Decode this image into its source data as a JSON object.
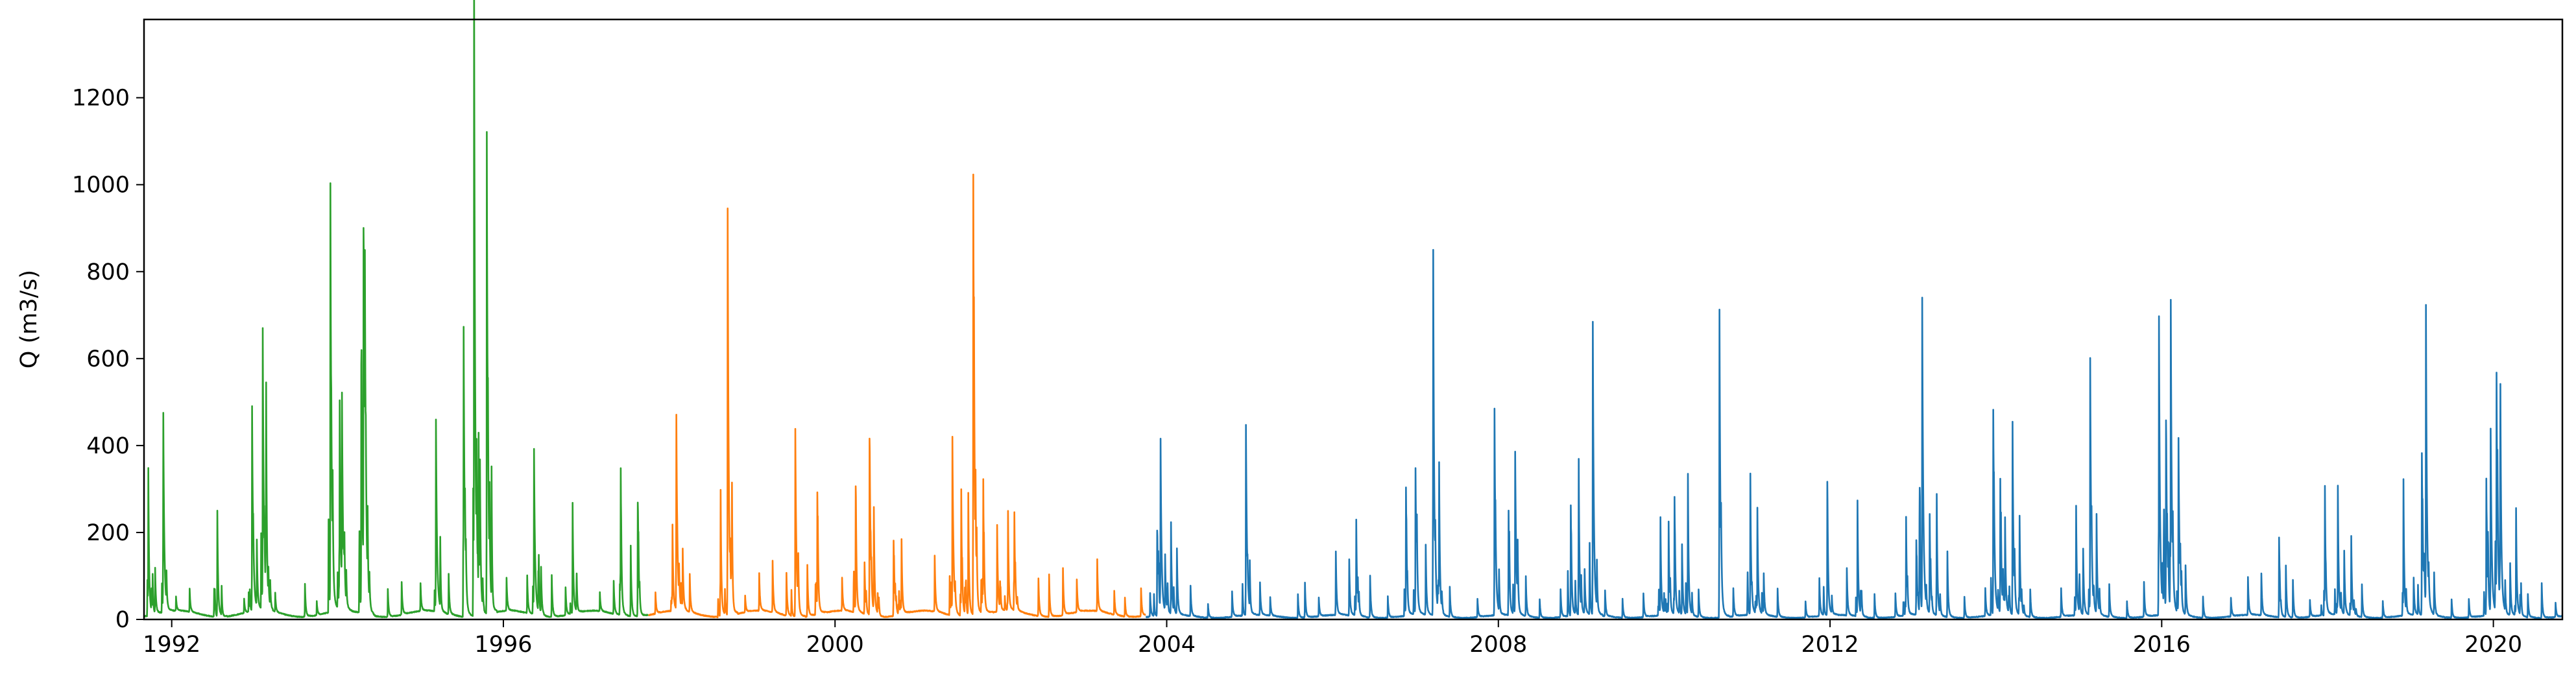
{
  "chart_data": {
    "type": "line",
    "title": "",
    "xlabel": "",
    "ylabel": "Q (m3/s)",
    "xlim": [
      "1991-09-01",
      "2020-10-31"
    ],
    "ylim": [
      0,
      1380
    ],
    "x_ticks": [
      "1992",
      "1996",
      "2000",
      "2004",
      "2008",
      "2012",
      "2016",
      "2020"
    ],
    "y_ticks": [
      0,
      200,
      400,
      600,
      800,
      1000,
      1200
    ],
    "grid": false,
    "legend": "none",
    "series": [
      {
        "color": "#2ca02c",
        "range": [
          "1991-09-01",
          "1997-09-30"
        ],
        "base": 12,
        "peaks": [
          [
            "1991-09-20",
            300
          ],
          [
            "1991-10-20",
            95
          ],
          [
            "1991-11-25",
            365
          ],
          [
            "1992-01-20",
            30
          ],
          [
            "1992-03-20",
            50
          ],
          [
            "1992-07-20",
            225
          ],
          [
            "1992-11-15",
            30
          ],
          [
            "1992-12-20",
            435
          ],
          [
            "1993-01-10",
            140
          ],
          [
            "1993-02-05",
            590
          ],
          [
            "1993-02-20",
            300
          ],
          [
            "1993-04-01",
            40
          ],
          [
            "1993-08-10",
            70
          ],
          [
            "1993-10-01",
            30
          ],
          [
            "1993-11-30",
            905
          ],
          [
            "1994-01-10",
            400
          ],
          [
            "1994-01-20",
            410
          ],
          [
            "1994-04-15",
            480
          ],
          [
            "1994-04-25",
            710
          ],
          [
            "1994-05-01",
            490
          ],
          [
            "1994-08-10",
            60
          ],
          [
            "1994-10-10",
            70
          ],
          [
            "1995-01-01",
            60
          ],
          [
            "1995-03-10",
            405
          ],
          [
            "1995-05-05",
            85
          ],
          [
            "1995-07-10",
            560
          ],
          [
            "1995-08-25",
            1320
          ],
          [
            "1995-09-20",
            280
          ],
          [
            "1995-10-20",
            1025
          ],
          [
            "1996-01-15",
            70
          ],
          [
            "1996-04-15",
            80
          ],
          [
            "1996-05-15",
            345
          ],
          [
            "1996-06-15",
            100
          ],
          [
            "1996-08-01",
            90
          ],
          [
            "1996-10-01",
            60
          ],
          [
            "1996-11-01",
            235
          ],
          [
            "1997-03-01",
            40
          ],
          [
            "1997-05-01",
            70
          ],
          [
            "1997-06-01",
            285
          ],
          [
            "1997-07-15",
            150
          ],
          [
            "1997-08-15",
            230
          ]
        ]
      },
      {
        "color": "#ff7f0e",
        "range": [
          "1997-10-01",
          "2003-09-30"
        ],
        "base": 12,
        "peaks": [
          [
            "1997-11-01",
            45
          ],
          [
            "1998-01-15",
            175
          ],
          [
            "1998-02-01",
            370
          ],
          [
            "1998-03-01",
            125
          ],
          [
            "1998-04-01",
            80
          ],
          [
            "1998-08-15",
            250
          ],
          [
            "1998-09-15",
            865
          ],
          [
            "1998-12-01",
            35
          ],
          [
            "1999-02-01",
            80
          ],
          [
            "1999-04-01",
            110
          ],
          [
            "1999-06-01",
            90
          ],
          [
            "1999-07-10",
            400
          ],
          [
            "1999-09-01",
            110
          ],
          [
            "1999-10-15",
            250
          ],
          [
            "2000-02-01",
            70
          ],
          [
            "2000-04-01",
            250
          ],
          [
            "2000-05-10",
            110
          ],
          [
            "2000-06-01",
            360
          ],
          [
            "2000-06-20",
            220
          ],
          [
            "2000-09-15",
            160
          ],
          [
            "2000-10-20",
            155
          ],
          [
            "2001-03-15",
            120
          ],
          [
            "2001-06-01",
            375
          ],
          [
            "2001-07-10",
            260
          ],
          [
            "2001-08-10",
            260
          ],
          [
            "2001-09-01",
            900
          ],
          [
            "2001-10-15",
            270
          ],
          [
            "2001-12-15",
            185
          ],
          [
            "2002-02-01",
            180
          ],
          [
            "2002-03-01",
            185
          ],
          [
            "2002-06-15",
            80
          ],
          [
            "2002-08-01",
            90
          ],
          [
            "2002-10-01",
            100
          ],
          [
            "2002-12-01",
            70
          ],
          [
            "2003-03-01",
            110
          ],
          [
            "2003-05-15",
            50
          ],
          [
            "2003-07-01",
            40
          ],
          [
            "2003-09-10",
            60
          ]
        ]
      },
      {
        "color": "#1f77b4",
        "range": [
          "2003-10-01",
          "2020-10-31"
        ],
        "base": 6,
        "peaks": [
          [
            "2003-10-20",
            50
          ],
          [
            "2003-11-20",
            170
          ],
          [
            "2003-12-05",
            325
          ],
          [
            "2003-12-25",
            120
          ],
          [
            "2004-01-20",
            195
          ],
          [
            "2004-02-15",
            140
          ],
          [
            "2004-04-15",
            65
          ],
          [
            "2004-07-01",
            30
          ],
          [
            "2004-10-15",
            55
          ],
          [
            "2004-12-15",
            405
          ],
          [
            "2005-02-15",
            70
          ],
          [
            "2005-04-01",
            40
          ],
          [
            "2005-08-01",
            50
          ],
          [
            "2005-09-01",
            75
          ],
          [
            "2005-11-01",
            40
          ],
          [
            "2006-01-15",
            135
          ],
          [
            "2006-03-15",
            120
          ],
          [
            "2006-04-15",
            200
          ],
          [
            "2006-06-15",
            90
          ],
          [
            "2006-09-01",
            45
          ],
          [
            "2006-11-20",
            270
          ],
          [
            "2007-01-01",
            310
          ],
          [
            "2007-02-15",
            150
          ],
          [
            "2007-03-20",
            675
          ],
          [
            "2007-04-15",
            300
          ],
          [
            "2007-06-01",
            65
          ],
          [
            "2007-10-01",
            40
          ],
          [
            "2007-12-15",
            365
          ],
          [
            "2008-02-15",
            210
          ],
          [
            "2008-03-15",
            345
          ],
          [
            "2008-05-01",
            85
          ],
          [
            "2008-07-01",
            40
          ],
          [
            "2008-10-01",
            60
          ],
          [
            "2008-11-15",
            235
          ],
          [
            "2008-12-20",
            280
          ],
          [
            "2009-01-15",
            95
          ],
          [
            "2009-02-20",
            570
          ],
          [
            "2009-04-15",
            55
          ],
          [
            "2009-07-01",
            40
          ],
          [
            "2009-10-01",
            50
          ],
          [
            "2009-12-15",
            205
          ],
          [
            "2010-01-20",
            195
          ],
          [
            "2010-02-15",
            240
          ],
          [
            "2010-03-20",
            150
          ],
          [
            "2010-04-15",
            270
          ],
          [
            "2010-06-01",
            60
          ],
          [
            "2010-09-01",
            525
          ],
          [
            "2010-11-01",
            60
          ],
          [
            "2011-01-15",
            300
          ],
          [
            "2011-02-15",
            220
          ],
          [
            "2011-03-15",
            85
          ],
          [
            "2011-05-15",
            60
          ],
          [
            "2011-09-15",
            35
          ],
          [
            "2011-11-15",
            80
          ],
          [
            "2011-12-20",
            275
          ],
          [
            "2012-03-15",
            100
          ],
          [
            "2012-05-01",
            245
          ],
          [
            "2012-07-15",
            50
          ],
          [
            "2012-10-15",
            50
          ],
          [
            "2012-12-01",
            205
          ],
          [
            "2013-01-15",
            160
          ],
          [
            "2013-02-10",
            670
          ],
          [
            "2013-03-15",
            210
          ],
          [
            "2013-04-15",
            225
          ],
          [
            "2013-06-01",
            140
          ],
          [
            "2013-08-15",
            45
          ],
          [
            "2013-11-15",
            60
          ],
          [
            "2013-12-20",
            435
          ],
          [
            "2014-01-20",
            285
          ],
          [
            "2014-02-10",
            195
          ],
          [
            "2014-03-15",
            325
          ],
          [
            "2014-04-15",
            200
          ],
          [
            "2014-06-01",
            60
          ],
          [
            "2014-10-15",
            60
          ],
          [
            "2014-12-20",
            230
          ],
          [
            "2015-01-20",
            140
          ],
          [
            "2015-02-20",
            435
          ],
          [
            "2015-03-20",
            210
          ],
          [
            "2015-05-15",
            70
          ],
          [
            "2015-08-01",
            35
          ],
          [
            "2015-10-15",
            75
          ],
          [
            "2015-12-20",
            580
          ],
          [
            "2016-01-20",
            390
          ],
          [
            "2016-02-10",
            620
          ],
          [
            "2016-03-15",
            370
          ],
          [
            "2016-04-15",
            105
          ],
          [
            "2016-07-01",
            45
          ],
          [
            "2016-11-01",
            40
          ],
          [
            "2017-01-15",
            80
          ],
          [
            "2017-03-15",
            90
          ],
          [
            "2017-06-01",
            165
          ],
          [
            "2017-07-01",
            110
          ],
          [
            "2017-08-01",
            80
          ],
          [
            "2017-10-15",
            35
          ],
          [
            "2017-12-20",
            265
          ],
          [
            "2018-02-15",
            270
          ],
          [
            "2018-03-15",
            135
          ],
          [
            "2018-04-15",
            165
          ],
          [
            "2018-06-01",
            70
          ],
          [
            "2018-09-01",
            35
          ],
          [
            "2018-12-01",
            235
          ],
          [
            "2019-01-15",
            80
          ],
          [
            "2019-02-20",
            345
          ],
          [
            "2019-03-10",
            570
          ],
          [
            "2019-04-15",
            90
          ],
          [
            "2019-07-01",
            40
          ],
          [
            "2019-09-15",
            40
          ],
          [
            "2019-12-01",
            290
          ],
          [
            "2019-12-20",
            390
          ],
          [
            "2020-01-15",
            490
          ],
          [
            "2020-02-01",
            330
          ],
          [
            "2020-03-15",
            110
          ],
          [
            "2020-04-10",
            225
          ],
          [
            "2020-06-01",
            50
          ],
          [
            "2020-08-01",
            75
          ],
          [
            "2020-10-01",
            30
          ]
        ]
      }
    ]
  }
}
